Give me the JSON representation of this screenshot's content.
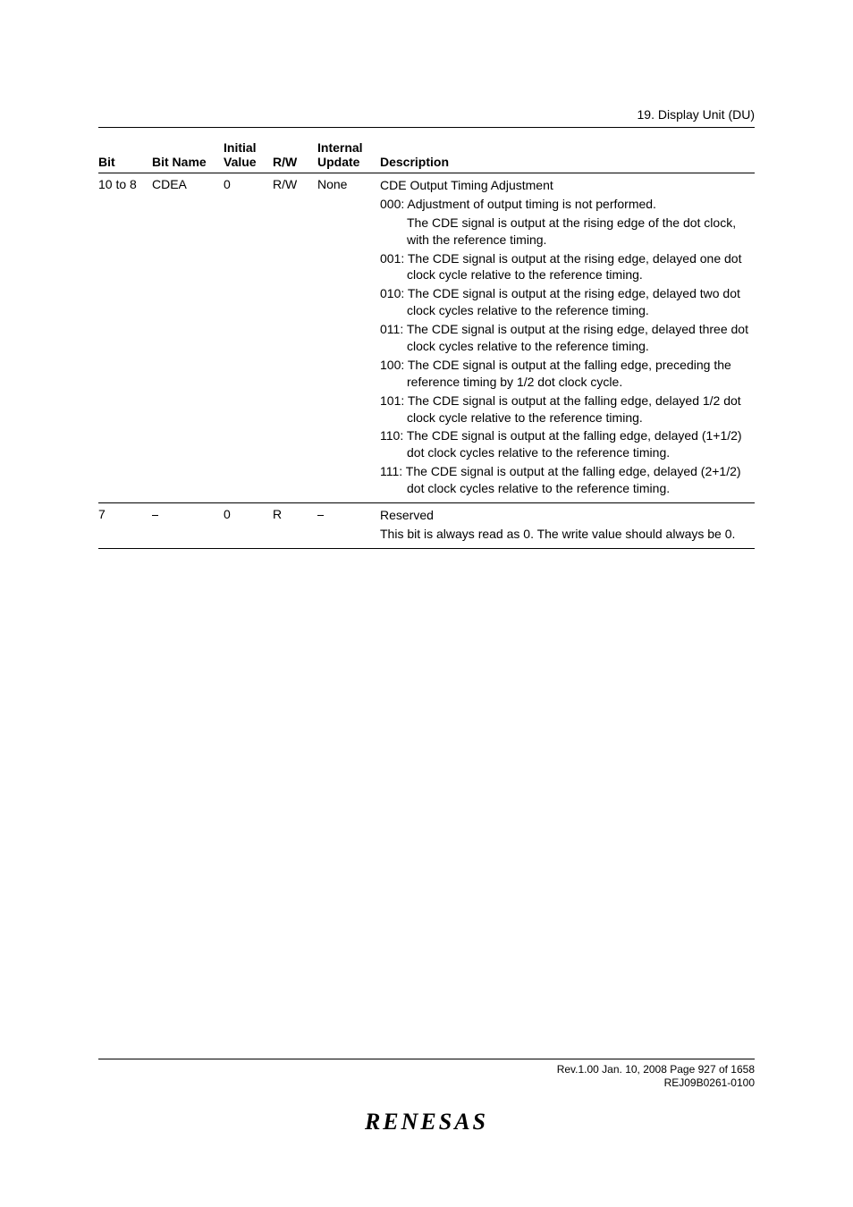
{
  "header": {
    "section": "19.   Display Unit (DU)"
  },
  "table": {
    "columns": {
      "bit": "Bit",
      "bitname": "Bit Name",
      "initial1": "Initial",
      "initial2": "Value",
      "rw": "R/W",
      "internal1": "Internal",
      "internal2": "Update",
      "desc": "Description"
    },
    "row1": {
      "bit": "10 to 8",
      "bitname": "CDEA",
      "initial": "0",
      "rw": "R/W",
      "update": "None",
      "title": "CDE Output Timing Adjustment",
      "d000a": "000: Adjustment of output timing is not performed.",
      "d000b": "The CDE signal is output at the rising edge of the dot clock, with the reference timing.",
      "d001": "001: The CDE signal is output at the rising edge, delayed one dot clock cycle relative to the reference timing.",
      "d010": "010: The CDE signal is output at the rising edge, delayed two dot clock cycles relative to the reference timing.",
      "d011": "011: The CDE signal is output at the rising edge, delayed three dot clock cycles relative to the reference timing.",
      "d100": "100: The CDE signal is output at the falling edge, preceding the reference timing by 1/2 dot clock cycle.",
      "d101": "101: The CDE signal is output at the falling edge, delayed 1/2 dot clock cycle relative to the reference timing.",
      "d110": "110: The CDE signal is output at the falling edge, delayed (1+1/2) dot clock cycles relative to the reference timing.",
      "d111": "111: The CDE signal is output at the falling edge, delayed (2+1/2) dot clock cycles relative to the reference timing."
    },
    "row2": {
      "bit": "7",
      "bitname": "⎯",
      "initial": "0",
      "rw": "R",
      "update": "⎯",
      "title": "Reserved",
      "body": "This bit is always read as 0. The write value should always be 0."
    }
  },
  "footer": {
    "line1": "Rev.1.00  Jan. 10, 2008  Page 927 of 1658",
    "line2": "REJ09B0261-0100",
    "logo": "RENESAS"
  }
}
